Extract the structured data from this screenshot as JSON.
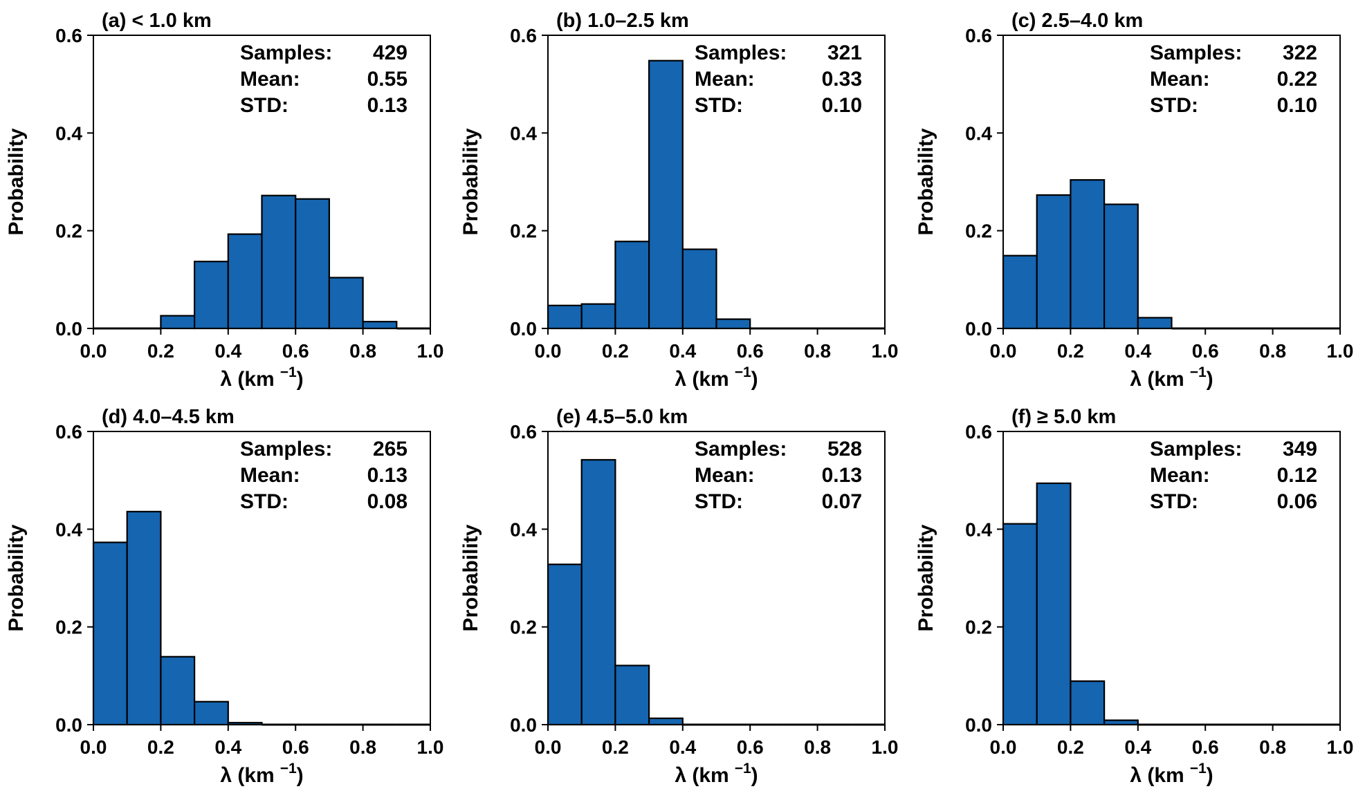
{
  "chart_data": [
    {
      "type": "bar",
      "panel": "a",
      "title": "(a) < 1.0 km",
      "xlabel": "λ (km",
      "xlabel_sup": "−1",
      "xlabel_close": ")",
      "ylabel": "Probability",
      "xlim": [
        0.0,
        1.0
      ],
      "ylim": [
        0.0,
        0.6
      ],
      "xticks": [
        "0.0",
        "0.2",
        "0.4",
        "0.6",
        "0.8",
        "1.0"
      ],
      "yticks": [
        "0.0",
        "0.2",
        "0.4",
        "0.6"
      ],
      "bin_edges": [
        0.0,
        0.1,
        0.2,
        0.3,
        0.4,
        0.5,
        0.6,
        0.7,
        0.8,
        0.9,
        1.0
      ],
      "values": [
        0.0,
        0.0,
        0.026,
        0.137,
        0.193,
        0.272,
        0.265,
        0.104,
        0.014,
        0.0
      ],
      "color": "#1565b0",
      "stats": {
        "samples_label": "Samples:",
        "samples": "429",
        "mean_label": "Mean:",
        "mean": "0.55",
        "std_label": "STD:",
        "std": "0.13"
      }
    },
    {
      "type": "bar",
      "panel": "b",
      "title": "(b) 1.0–2.5 km",
      "xlabel": "λ (km",
      "xlabel_sup": "−1",
      "xlabel_close": ")",
      "ylabel": "Probability",
      "xlim": [
        0.0,
        1.0
      ],
      "ylim": [
        0.0,
        0.6
      ],
      "xticks": [
        "0.0",
        "0.2",
        "0.4",
        "0.6",
        "0.8",
        "1.0"
      ],
      "yticks": [
        "0.0",
        "0.2",
        "0.4",
        "0.6"
      ],
      "bin_edges": [
        0.0,
        0.1,
        0.2,
        0.3,
        0.4,
        0.5,
        0.6,
        0.7,
        0.8,
        0.9,
        1.0
      ],
      "values": [
        0.047,
        0.05,
        0.178,
        0.548,
        0.162,
        0.019,
        0.0,
        0.0,
        0.0,
        0.0
      ],
      "color": "#1565b0",
      "stats": {
        "samples_label": "Samples:",
        "samples": "321",
        "mean_label": "Mean:",
        "mean": "0.33",
        "std_label": "STD:",
        "std": "0.10"
      }
    },
    {
      "type": "bar",
      "panel": "c",
      "title": "(c) 2.5–4.0 km",
      "xlabel": "λ (km",
      "xlabel_sup": "−1",
      "xlabel_close": ")",
      "ylabel": "Probability",
      "xlim": [
        0.0,
        1.0
      ],
      "ylim": [
        0.0,
        0.6
      ],
      "xticks": [
        "0.0",
        "0.2",
        "0.4",
        "0.6",
        "0.8",
        "1.0"
      ],
      "yticks": [
        "0.0",
        "0.2",
        "0.4",
        "0.6"
      ],
      "bin_edges": [
        0.0,
        0.1,
        0.2,
        0.3,
        0.4,
        0.5,
        0.6,
        0.7,
        0.8,
        0.9,
        1.0
      ],
      "values": [
        0.149,
        0.273,
        0.304,
        0.254,
        0.022,
        0.0,
        0.0,
        0.0,
        0.0,
        0.0
      ],
      "color": "#1565b0",
      "stats": {
        "samples_label": "Samples:",
        "samples": "322",
        "mean_label": "Mean:",
        "mean": "0.22",
        "std_label": "STD:",
        "std": "0.10"
      }
    },
    {
      "type": "bar",
      "panel": "d",
      "title": "(d) 4.0–4.5 km",
      "xlabel": "λ (km",
      "xlabel_sup": "−1",
      "xlabel_close": ")",
      "ylabel": "Probability",
      "xlim": [
        0.0,
        1.0
      ],
      "ylim": [
        0.0,
        0.6
      ],
      "xticks": [
        "0.0",
        "0.2",
        "0.4",
        "0.6",
        "0.8",
        "1.0"
      ],
      "yticks": [
        "0.0",
        "0.2",
        "0.4",
        "0.6"
      ],
      "bin_edges": [
        0.0,
        0.1,
        0.2,
        0.3,
        0.4,
        0.5,
        0.6,
        0.7,
        0.8,
        0.9,
        1.0
      ],
      "values": [
        0.373,
        0.436,
        0.139,
        0.047,
        0.004,
        0.0,
        0.0,
        0.0,
        0.0,
        0.0
      ],
      "color": "#1565b0",
      "stats": {
        "samples_label": "Samples:",
        "samples": "265",
        "mean_label": "Mean:",
        "mean": "0.13",
        "std_label": "STD:",
        "std": "0.08"
      }
    },
    {
      "type": "bar",
      "panel": "e",
      "title": "(e) 4.5–5.0 km",
      "xlabel": "λ (km",
      "xlabel_sup": "−1",
      "xlabel_close": ")",
      "ylabel": "Probability",
      "xlim": [
        0.0,
        1.0
      ],
      "ylim": [
        0.0,
        0.6
      ],
      "xticks": [
        "0.0",
        "0.2",
        "0.4",
        "0.6",
        "0.8",
        "1.0"
      ],
      "yticks": [
        "0.0",
        "0.2",
        "0.4",
        "0.6"
      ],
      "bin_edges": [
        0.0,
        0.1,
        0.2,
        0.3,
        0.4,
        0.5,
        0.6,
        0.7,
        0.8,
        0.9,
        1.0
      ],
      "values": [
        0.328,
        0.542,
        0.121,
        0.013,
        0.0,
        0.0,
        0.0,
        0.0,
        0.0,
        0.0
      ],
      "color": "#1565b0",
      "stats": {
        "samples_label": "Samples:",
        "samples": "528",
        "mean_label": "Mean:",
        "mean": "0.13",
        "std_label": "STD:",
        "std": "0.07"
      }
    },
    {
      "type": "bar",
      "panel": "f",
      "title": "(f)  ≥  5.0 km",
      "xlabel": "λ (km",
      "xlabel_sup": "−1",
      "xlabel_close": ")",
      "ylabel": "Probability",
      "xlim": [
        0.0,
        1.0
      ],
      "ylim": [
        0.0,
        0.6
      ],
      "xticks": [
        "0.0",
        "0.2",
        "0.4",
        "0.6",
        "0.8",
        "1.0"
      ],
      "yticks": [
        "0.0",
        "0.2",
        "0.4",
        "0.6"
      ],
      "bin_edges": [
        0.0,
        0.1,
        0.2,
        0.3,
        0.4,
        0.5,
        0.6,
        0.7,
        0.8,
        0.9,
        1.0
      ],
      "values": [
        0.411,
        0.494,
        0.089,
        0.009,
        0.0,
        0.0,
        0.0,
        0.0,
        0.0,
        0.0
      ],
      "color": "#1565b0",
      "stats": {
        "samples_label": "Samples:",
        "samples": "349",
        "mean_label": "Mean:",
        "mean": "0.12",
        "std_label": "STD:",
        "std": "0.06"
      }
    }
  ]
}
